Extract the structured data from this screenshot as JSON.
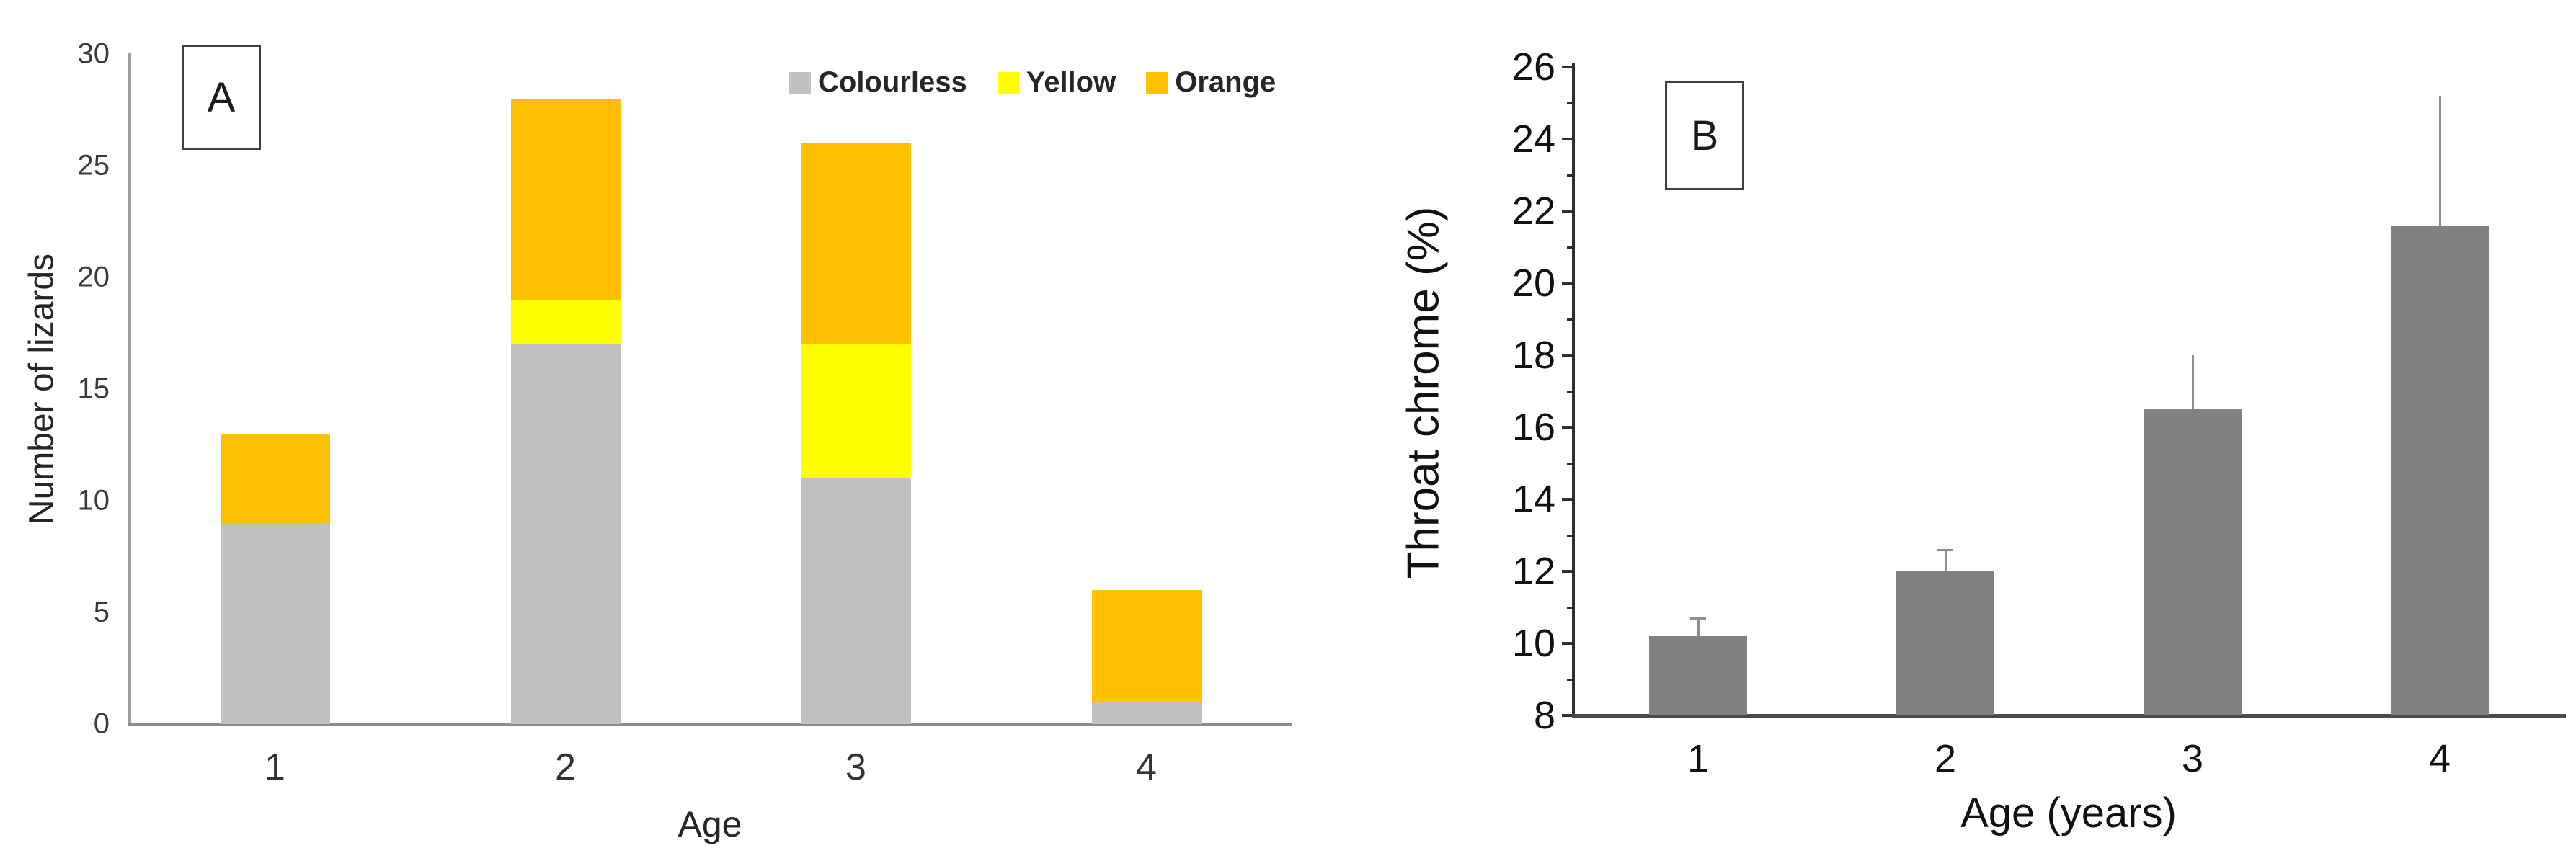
{
  "colors": {
    "colourless": "#c1c1c1",
    "yellow": "#ffff00",
    "orange": "#ffc000",
    "bar_gray": "#818181",
    "axis_gray_v": "#9c9c9c",
    "axis_gray_h": "#8b8b8b",
    "axis_black": "#2f2f2f",
    "baseline_black": "#4a4a4a",
    "error_gray": "#8f8f8f"
  },
  "panel_a": {
    "letter": "A",
    "y_axis_title": "Number of lizards",
    "x_axis_title": "Age",
    "legend": [
      {
        "label": "Colourless",
        "color_key": "colourless"
      },
      {
        "label": "Yellow",
        "color_key": "yellow"
      },
      {
        "label": "Orange",
        "color_key": "orange"
      }
    ]
  },
  "panel_b": {
    "letter": "B",
    "y_axis_title": "Throat chrome (%)",
    "x_axis_title": "Age (years)"
  },
  "chart_data": [
    {
      "type": "bar",
      "panel": "A",
      "stacked": true,
      "categories": [
        "1",
        "2",
        "3",
        "4"
      ],
      "series": [
        {
          "name": "Colourless",
          "color_key": "colourless",
          "values": [
            9,
            17,
            11,
            1
          ]
        },
        {
          "name": "Yellow",
          "color_key": "yellow",
          "values": [
            0,
            2,
            6,
            0
          ]
        },
        {
          "name": "Orange",
          "color_key": "orange",
          "values": [
            4,
            9,
            9,
            5
          ]
        }
      ],
      "totals": [
        13,
        28,
        26,
        6
      ],
      "title": "",
      "xlabel": "Age",
      "ylabel": "Number of lizards",
      "ylim": [
        0,
        30
      ],
      "y_ticks": [
        0,
        5,
        10,
        15,
        20,
        25,
        30
      ],
      "grid": false,
      "legend_position": "top-right-inside"
    },
    {
      "type": "bar",
      "panel": "B",
      "stacked": false,
      "categories": [
        "1",
        "2",
        "3",
        "4"
      ],
      "values": [
        10.2,
        12.0,
        16.5,
        21.6
      ],
      "error_upper_to": [
        10.7,
        12.6,
        18.0,
        25.2
      ],
      "error_caps": [
        true,
        true,
        false,
        false
      ],
      "title": "",
      "xlabel": "Age (years)",
      "ylabel": "Throat chrome (%)",
      "ylim": [
        8,
        26
      ],
      "y_ticks": [
        8,
        10,
        12,
        14,
        16,
        18,
        20,
        22,
        24,
        26
      ],
      "y_minor_ticks": [
        9,
        11,
        13,
        15,
        17,
        19,
        21,
        23,
        25
      ],
      "grid": false,
      "legend_position": "none"
    }
  ]
}
